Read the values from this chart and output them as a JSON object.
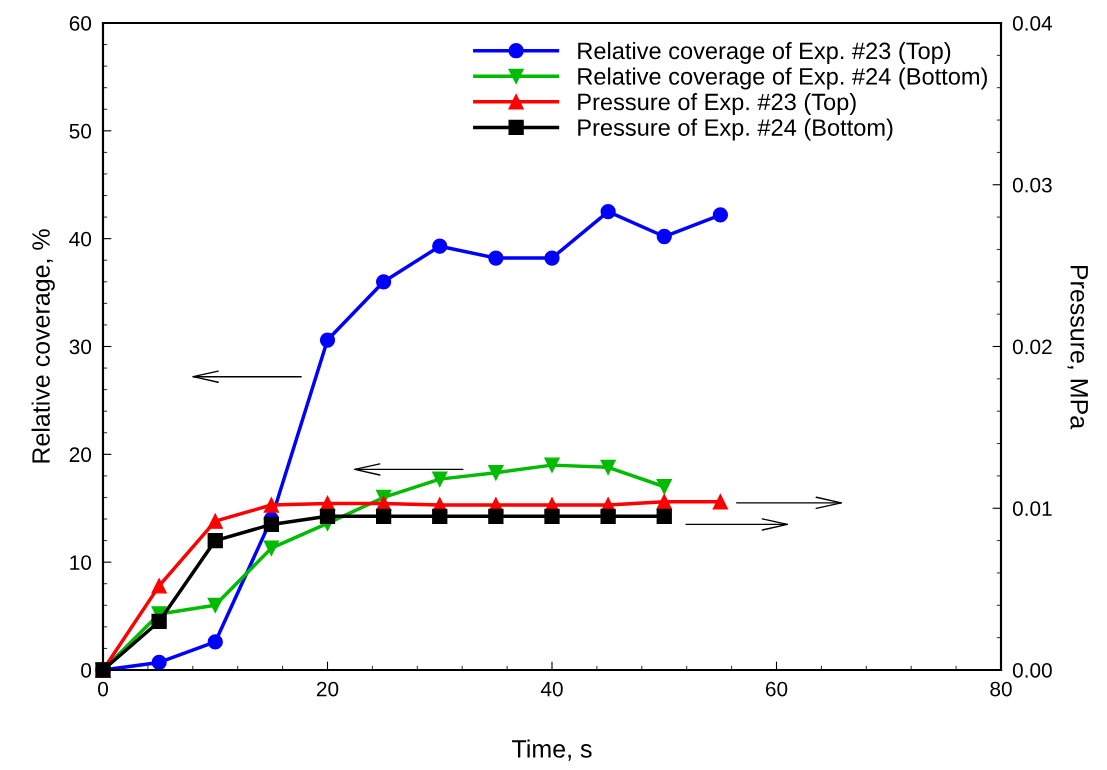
{
  "chart_data": {
    "type": "line",
    "xlabel": "Time, s",
    "ylabel": "Relative coverage, %",
    "y2label": "Pressure, MPa",
    "xlim": [
      0,
      80
    ],
    "xticks": [
      0,
      20,
      40,
      60,
      80
    ],
    "ylim": [
      0,
      60
    ],
    "yticks": [
      0,
      10,
      20,
      30,
      40,
      50,
      60
    ],
    "y2lim": [
      0,
      0.04
    ],
    "y2ticks": [
      {
        "value": 0,
        "label": "0.00"
      },
      {
        "value": 0.01,
        "label": "0.01"
      },
      {
        "value": 0.02,
        "label": "0.02"
      },
      {
        "value": 0.03,
        "label": "0.03"
      },
      {
        "value": 0.04,
        "label": "0.04"
      }
    ],
    "grid": false,
    "legend": "top",
    "line_style": "solid",
    "series": [
      {
        "name": "Relative coverage of Exp. #23 (Top)",
        "color": "#0000ff",
        "marker": "circle",
        "x": [
          0,
          5,
          10,
          15,
          20,
          25,
          30,
          35,
          40,
          45,
          50,
          55
        ],
        "values": [
          0,
          0.7,
          2.6,
          14.0,
          30.6,
          36.0,
          39.3,
          38.2,
          38.2,
          42.5,
          40.2,
          42.2
        ]
      },
      {
        "name": "Relative coverage of Exp. #24 (Bottom)",
        "color": "#00bb00",
        "marker": "triangle_down",
        "x": [
          0,
          5,
          10,
          15,
          20,
          25,
          30,
          35,
          40,
          45,
          50
        ],
        "values": [
          0,
          5.2,
          6.0,
          11.3,
          13.6,
          16.0,
          17.7,
          18.3,
          19.0,
          18.8,
          17.0
        ]
      },
      {
        "name": "Pressure of Exp. #23 (Top)",
        "color": "#ff0000",
        "marker": "triangle",
        "axis": "y2",
        "x": [
          0,
          5,
          10,
          15,
          20,
          25,
          30,
          35,
          40,
          45,
          50,
          55
        ],
        "values": [
          0,
          0.0052,
          0.0092,
          0.0102,
          0.0103,
          0.0103,
          0.0102,
          0.0102,
          0.0102,
          0.0102,
          0.0104,
          0.0104
        ]
      },
      {
        "name": "Pressure of Exp. #24 (Bottom)",
        "color": "#000000",
        "marker": "square",
        "axis": "y2",
        "x": [
          0,
          5,
          10,
          15,
          20,
          25,
          30,
          35,
          40,
          45,
          50
        ],
        "values": [
          0,
          0.003,
          0.008,
          0.009,
          0.0095,
          0.0095,
          0.0095,
          0.0095,
          0.0095,
          0.0095,
          0.0095
        ]
      }
    ]
  }
}
